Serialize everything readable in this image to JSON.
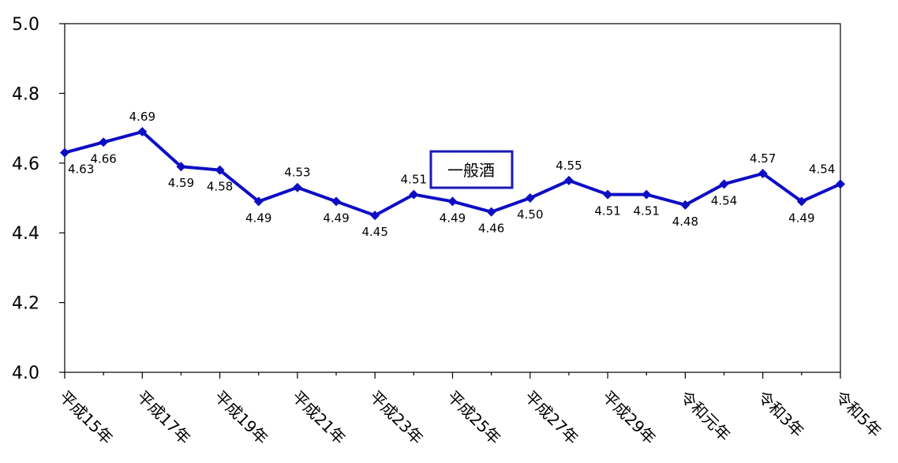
{
  "chart_data": {
    "type": "line",
    "title": "",
    "xlabel": "",
    "ylabel": "",
    "ylim": [
      4.0,
      5.0
    ],
    "yticks": [
      "4.0",
      "4.2",
      "4.4",
      "4.6",
      "4.8",
      "5.0"
    ],
    "grid": false,
    "legend_position": "center",
    "x_tick_labels": [
      "平成15年",
      "平成17年",
      "平成19年",
      "平成21年",
      "平成23年",
      "平成25年",
      "平成27年",
      "平成29年",
      "令和元年",
      "令和3年",
      "令和5年"
    ],
    "series": [
      {
        "name": "一般酒",
        "color": "#0d0dc4",
        "values": [
          4.63,
          4.66,
          4.69,
          4.59,
          4.58,
          4.49,
          4.53,
          4.49,
          4.45,
          4.51,
          4.49,
          4.46,
          4.5,
          4.55,
          4.51,
          4.51,
          4.48,
          4.54,
          4.57,
          4.49,
          4.54
        ],
        "labels": [
          "4.63",
          "4.66",
          "4.69",
          "4.59",
          "4.58",
          "4.49",
          "4.53",
          "4.49",
          "4.45",
          "4.51",
          "4.49",
          "4.46",
          "4.50",
          "4.55",
          "4.51",
          "4.51",
          "4.48",
          "4.54",
          "4.57",
          "4.49",
          "4.54"
        ]
      }
    ]
  }
}
